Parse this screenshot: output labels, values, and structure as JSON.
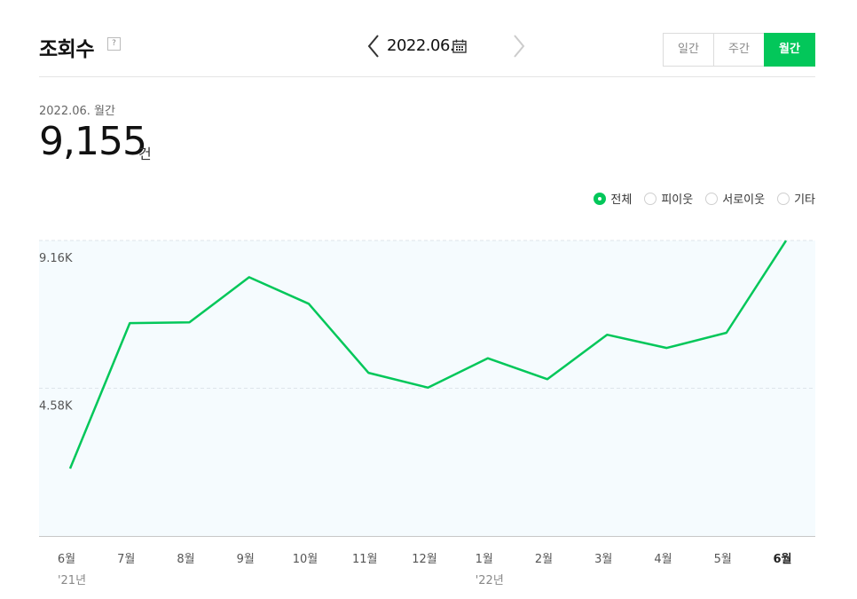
{
  "header": {
    "title": "조회수",
    "help_label": "?",
    "date": "2022.06.",
    "periods": [
      {
        "label": "일간",
        "active": false
      },
      {
        "label": "주간",
        "active": false
      },
      {
        "label": "월간",
        "active": true
      }
    ]
  },
  "summary": {
    "period_label": "2022.06. 월간",
    "total": "9,155",
    "unit": "건"
  },
  "legend": [
    {
      "label": "전체",
      "selected": true
    },
    {
      "label": "피이웃",
      "selected": false
    },
    {
      "label": "서로이웃",
      "selected": false
    },
    {
      "label": "기타",
      "selected": false
    }
  ],
  "colors": {
    "accent": "#03c75a",
    "plot_bg": "#f5fbfe",
    "grid": "#dde5ea"
  },
  "chart_data": {
    "type": "line",
    "categories": [
      "6월",
      "7월",
      "8월",
      "9월",
      "10월",
      "11월",
      "12월",
      "1월",
      "2월",
      "3월",
      "4월",
      "5월",
      "6월"
    ],
    "year_labels": [
      "'21년",
      "",
      "",
      "",
      "",
      "",
      "",
      "'22년",
      "",
      "",
      "",
      "",
      ""
    ],
    "series": [
      {
        "values": [
          2090,
          6600,
          6620,
          8020,
          7200,
          5060,
          4600,
          5510,
          4860,
          6240,
          5830,
          6300,
          9155
        ]
      }
    ],
    "y_ticks": [
      {
        "value": 4580,
        "label": "4.58K"
      },
      {
        "value": 9160,
        "label": "9.16K"
      }
    ],
    "ylim": [
      0,
      9160
    ],
    "grid": true,
    "highlight_index": 12
  }
}
